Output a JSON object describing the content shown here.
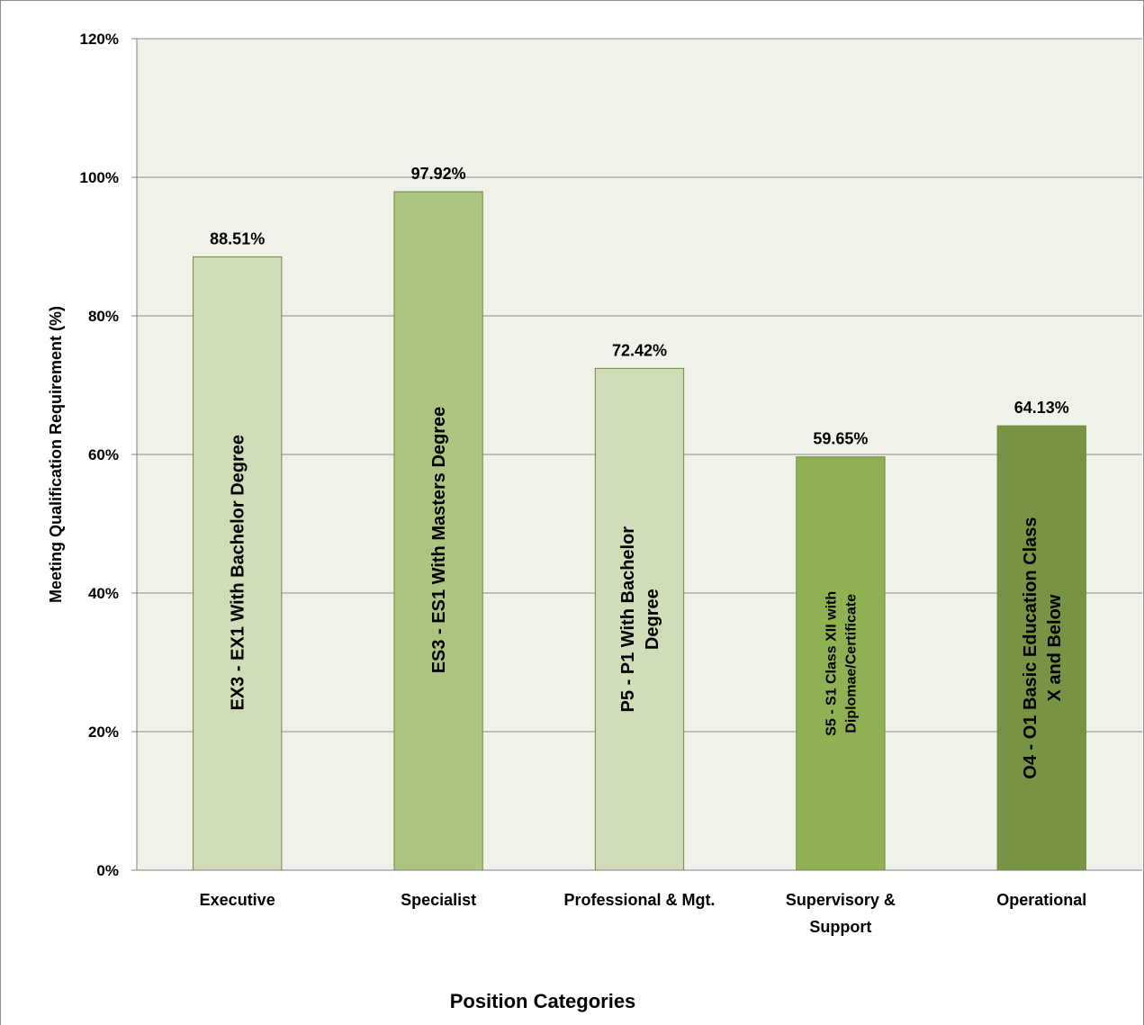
{
  "chart_data": {
    "type": "bar",
    "title": "",
    "xlabel": "Position Categories",
    "ylabel": "Meeting Qualification Requirement (%)",
    "ylim": [
      0,
      120
    ],
    "yticks": [
      "0%",
      "20%",
      "40%",
      "60%",
      "80%",
      "100%",
      "120%"
    ],
    "categories": [
      "Executive",
      "Specialist",
      "Professional  & Mgt.",
      "Supervisory & Support",
      "Operational"
    ],
    "category_lines": [
      [
        "Executive"
      ],
      [
        "Specialist"
      ],
      [
        "Professional  & Mgt."
      ],
      [
        "Supervisory &",
        "Support"
      ],
      [
        "Operational"
      ]
    ],
    "values": [
      88.51,
      97.92,
      72.42,
      59.65,
      64.13
    ],
    "value_labels": [
      "88.51%",
      "97.92%",
      "72.42%",
      "59.65%",
      "64.13%"
    ],
    "bar_labels": [
      [
        "EX3  - EX1 With Bachelor Degree"
      ],
      [
        "ES3  - ES1 With Masters Degree"
      ],
      [
        "P5  - P1 With Bachelor",
        "Degree"
      ],
      [
        "S5  - S1 Class XII with",
        "Diplomae/Certificate"
      ],
      [
        "O4  - O1 Basic Education Class",
        "X and Below"
      ]
    ],
    "bar_colors": [
      "#d0ddb9",
      "#adc581",
      "#d0ddb9",
      "#8fb053",
      "#789343"
    ],
    "plot_background": "#eff2e9",
    "grid": true,
    "legend": "none"
  }
}
